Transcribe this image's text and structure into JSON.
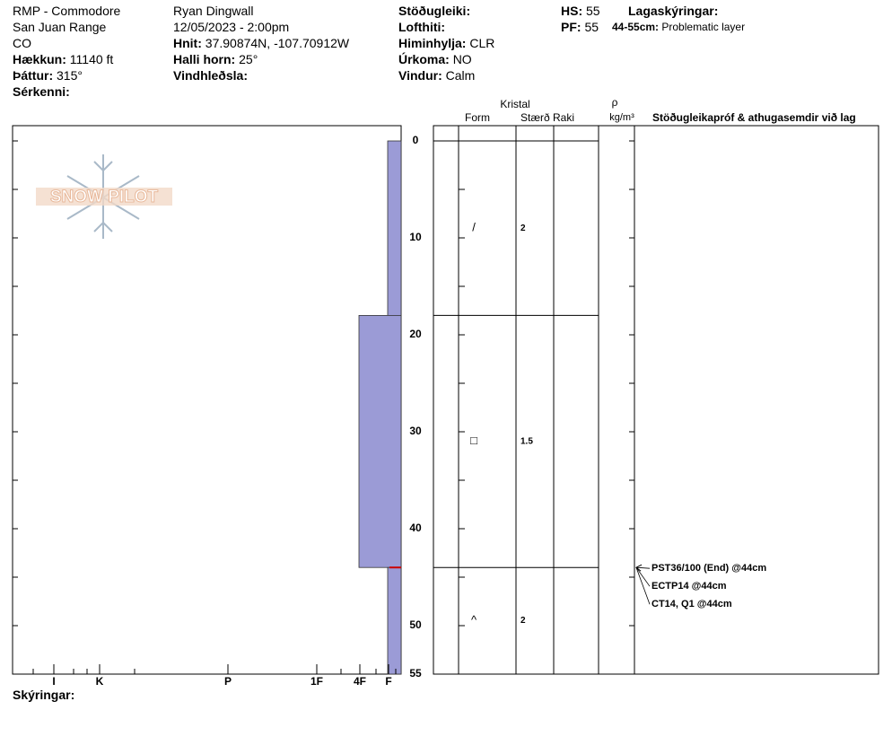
{
  "header": {
    "col1": [
      "RMP - Commodore",
      "San Juan Range",
      "CO"
    ],
    "col1_fields": [
      {
        "label": "Hækkun:",
        "value": "11140 ft"
      },
      {
        "label": "Þáttur:",
        "value": "315°"
      },
      {
        "label": "Sérkenni:"
      }
    ],
    "col2": [
      "Ryan Dingwall",
      "12/05/2023 - 2:00pm"
    ],
    "col2_fields": [
      {
        "label": "Hnit:",
        "value": "37.90874N, -107.70912W"
      },
      {
        "label": "Halli horn:",
        "value": "25°"
      },
      {
        "label": "Vindhleðsla:"
      }
    ],
    "col3_fields": [
      {
        "label": "Stöðugleiki:"
      },
      {
        "label": "Lofthiti:"
      },
      {
        "label": "Himinhylja:",
        "value": "CLR"
      },
      {
        "label": "Úrkoma:",
        "value": "NO"
      },
      {
        "label": "Vindur:",
        "value": "Calm"
      }
    ],
    "col4_fields": [
      {
        "label": "HS:",
        "value": "55"
      },
      {
        "label": "PF:",
        "value": "55"
      }
    ],
    "notes_title": "Lagaskýringar:",
    "notes": [
      {
        "label": "44-55cm:",
        "value": "Problematic layer"
      }
    ]
  },
  "logo": "SNOW PILOT",
  "profile": {
    "depth_ticks": [
      0,
      10,
      20,
      30,
      40,
      50,
      55
    ],
    "depth_minor_ticks": [
      5,
      15,
      25,
      35,
      45
    ],
    "hardness_labels": [
      "I",
      "K",
      "P",
      "1F",
      "4F",
      "F"
    ],
    "layers": [
      {
        "top": 0,
        "bottom": 18,
        "hardness": "F",
        "form": "/",
        "size": 2
      },
      {
        "top": 18,
        "bottom": 44,
        "hardness": "4F",
        "form": "□",
        "size": 1.5
      },
      {
        "top": 44,
        "bottom": 55,
        "hardness": "F",
        "form": "^",
        "size": 2
      }
    ]
  },
  "table_headers": {
    "crystal": "Kristal",
    "form": "Form",
    "size": "Stærð",
    "moisture": "Raki",
    "rho": "ρ",
    "density_unit": "kg/m³",
    "tests": "Stöðugleikapróf & athugasemdir við lag"
  },
  "tests": [
    "PST36/100 (End) @44cm",
    "ECTP14 @44cm",
    "CT14, Q1 @44cm"
  ],
  "footer": "Skýringar:"
}
